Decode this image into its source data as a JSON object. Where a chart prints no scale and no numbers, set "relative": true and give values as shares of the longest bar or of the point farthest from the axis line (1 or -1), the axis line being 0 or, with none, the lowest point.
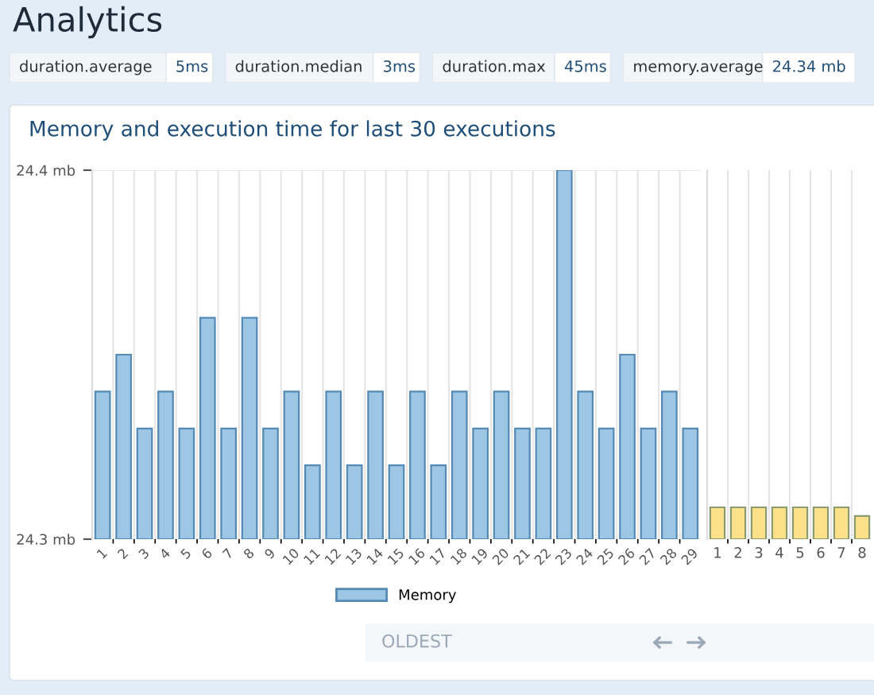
{
  "chart_data": [
    {
      "type": "other",
      "title": "Analytics",
      "annotations": [
        "duration.average",
        "5ms",
        "duration.median",
        "3ms",
        "duration.max",
        "45ms",
        "memory.average",
        "24.34 mb"
      ]
    },
    {
      "type": "bar",
      "title": "Memory and execution time for last 30 executions",
      "categories": [
        "1",
        "2",
        "3",
        "4",
        "5",
        "6",
        "7",
        "8",
        "9",
        "10",
        "11",
        "12",
        "13",
        "14",
        "15",
        "16",
        "17",
        "18",
        "19",
        "20",
        "21",
        "22",
        "23",
        "24",
        "25",
        "26",
        "27",
        "28",
        "29"
      ],
      "series": [
        {
          "name": "Memory",
          "color": "#9cc6e3",
          "values": [
            24.34,
            24.35,
            24.33,
            24.34,
            24.33,
            24.36,
            24.33,
            24.36,
            24.33,
            24.34,
            24.32,
            24.34,
            24.32,
            24.34,
            24.32,
            24.34,
            24.32,
            24.34,
            24.33,
            24.34,
            24.33,
            24.33,
            24.4,
            24.34,
            24.33,
            24.35,
            24.33,
            24.34,
            24.33
          ]
        }
      ],
      "ylim": [
        24.3,
        24.4
      ],
      "yticks": [
        {
          "value": 24.3,
          "label": "24.3 mb"
        },
        {
          "value": 24.4,
          "label": "24.4 mb"
        }
      ],
      "grid": true,
      "legend": "bottom",
      "annotations": [
        "OLDEST"
      ]
    },
    {
      "type": "bar",
      "relative": true,
      "categories": [
        "1",
        "2",
        "3",
        "4",
        "5",
        "6",
        "7",
        "8"
      ],
      "series": [
        {
          "color": "#fde08a",
          "values": [
            1,
            1,
            1,
            1,
            1,
            1,
            1,
            0.73
          ]
        }
      ],
      "grid": "x",
      "tick_labels": "x"
    }
  ]
}
